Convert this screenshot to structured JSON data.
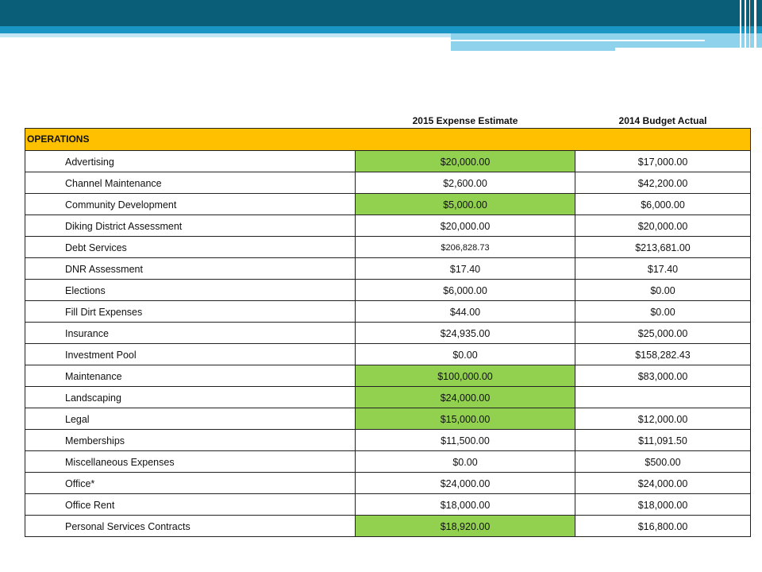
{
  "colors": {
    "header_dark": "#0a5e78",
    "header_mid": "#1a96c4",
    "header_light": "#8fd2ec",
    "section_fill": "#ffc000",
    "highlight_fill": "#92d050"
  },
  "table": {
    "columns": [
      "",
      "2015 Expense Estimate",
      "2014 Budget Actual"
    ],
    "section_label": "OPERATIONS",
    "rows": [
      {
        "name": "Advertising",
        "estimate_2015": "$20,000.00",
        "actual_2014": "$17,000.00",
        "highlight": true
      },
      {
        "name": "Channel Maintenance",
        "estimate_2015": "$2,600.00",
        "actual_2014": "$42,200.00",
        "highlight": false
      },
      {
        "name": "Community Development",
        "estimate_2015": "$5,000.00",
        "actual_2014": "$6,000.00",
        "highlight": true
      },
      {
        "name": "Diking District Assessment",
        "estimate_2015": "$20,000.00",
        "actual_2014": "$20,000.00",
        "highlight": false
      },
      {
        "name": "Debt Services",
        "estimate_2015": "$206,828.73",
        "actual_2014": "$213,681.00",
        "highlight": false,
        "small": true
      },
      {
        "name": "DNR Assessment",
        "estimate_2015": "$17.40",
        "actual_2014": "$17.40",
        "highlight": false
      },
      {
        "name": "Elections",
        "estimate_2015": "$6,000.00",
        "actual_2014": "$0.00",
        "highlight": false
      },
      {
        "name": "Fill Dirt Expenses",
        "estimate_2015": "$44.00",
        "actual_2014": "$0.00",
        "highlight": false
      },
      {
        "name": "Insurance",
        "estimate_2015": "$24,935.00",
        "actual_2014": "$25,000.00",
        "highlight": false
      },
      {
        "name": "Investment Pool",
        "estimate_2015": "$0.00",
        "actual_2014": "$158,282.43",
        "highlight": false
      },
      {
        "name": "Maintenance",
        "estimate_2015": "$100,000.00",
        "actual_2014": "$83,000.00",
        "highlight": true
      },
      {
        "name": "Landscaping",
        "estimate_2015": "$24,000.00",
        "actual_2014": "",
        "highlight": true
      },
      {
        "name": "Legal",
        "estimate_2015": "$15,000.00",
        "actual_2014": "$12,000.00",
        "highlight": true
      },
      {
        "name": "Memberships",
        "estimate_2015": "$11,500.00",
        "actual_2014": "$11,091.50",
        "highlight": false
      },
      {
        "name": "Miscellaneous Expenses",
        "estimate_2015": "$0.00",
        "actual_2014": "$500.00",
        "highlight": false
      },
      {
        "name": "Office*",
        "estimate_2015": "$24,000.00",
        "actual_2014": "$24,000.00",
        "highlight": false
      },
      {
        "name": "Office Rent",
        "estimate_2015": "$18,000.00",
        "actual_2014": "$18,000.00",
        "highlight": false
      },
      {
        "name": "Personal Services Contracts",
        "estimate_2015": "$18,920.00",
        "actual_2014": "$16,800.00",
        "highlight": true
      }
    ]
  }
}
